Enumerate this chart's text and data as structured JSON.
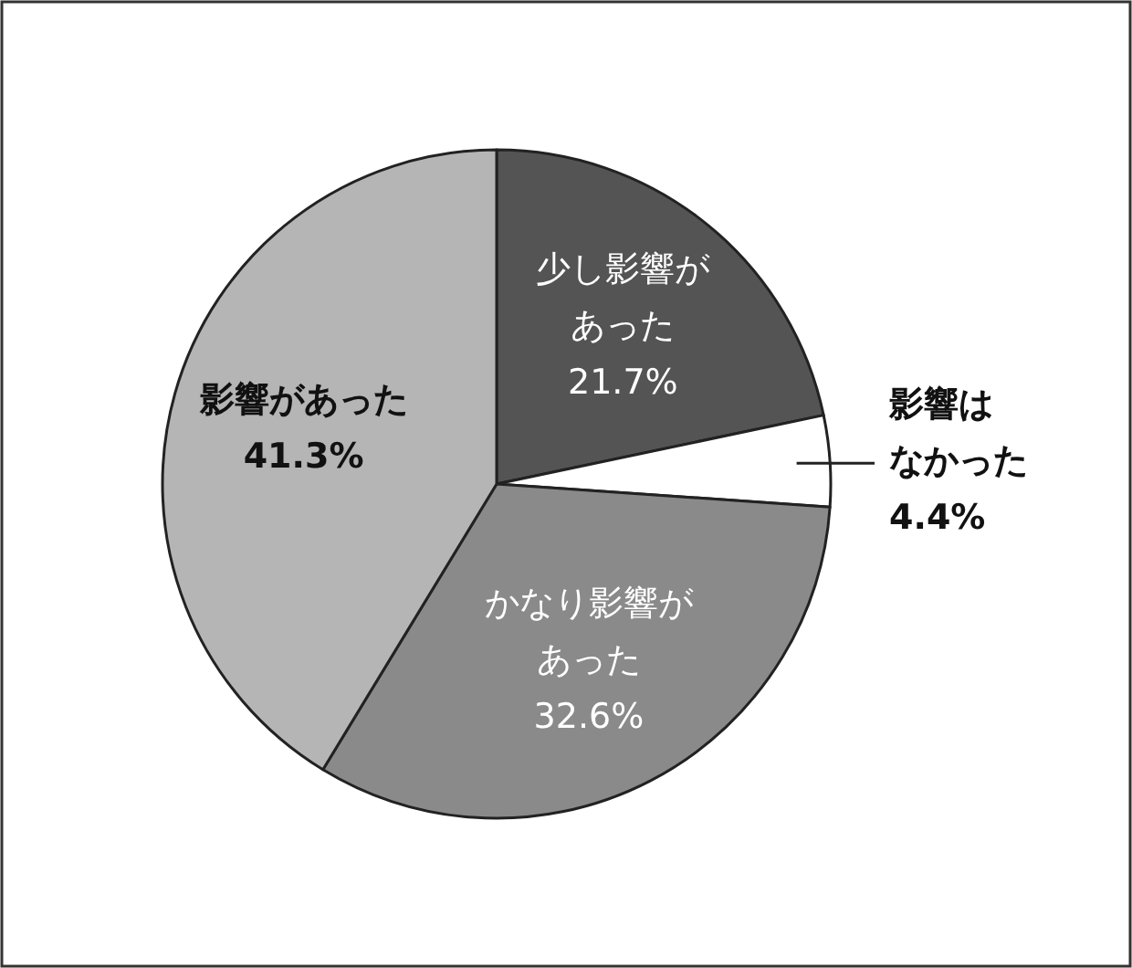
{
  "chart_data": {
    "type": "pie",
    "categories": [
      "少し影響があった",
      "影響はなかった",
      "かなり影響があった",
      "影響があった"
    ],
    "values": [
      21.7,
      4.4,
      32.6,
      41.3
    ],
    "colors": [
      "#545454",
      "#ffffff",
      "#8a8a8a",
      "#b5b5b5"
    ],
    "value_labels": [
      "21.7%",
      "4.4%",
      "32.6%",
      "41.3%"
    ]
  }
}
